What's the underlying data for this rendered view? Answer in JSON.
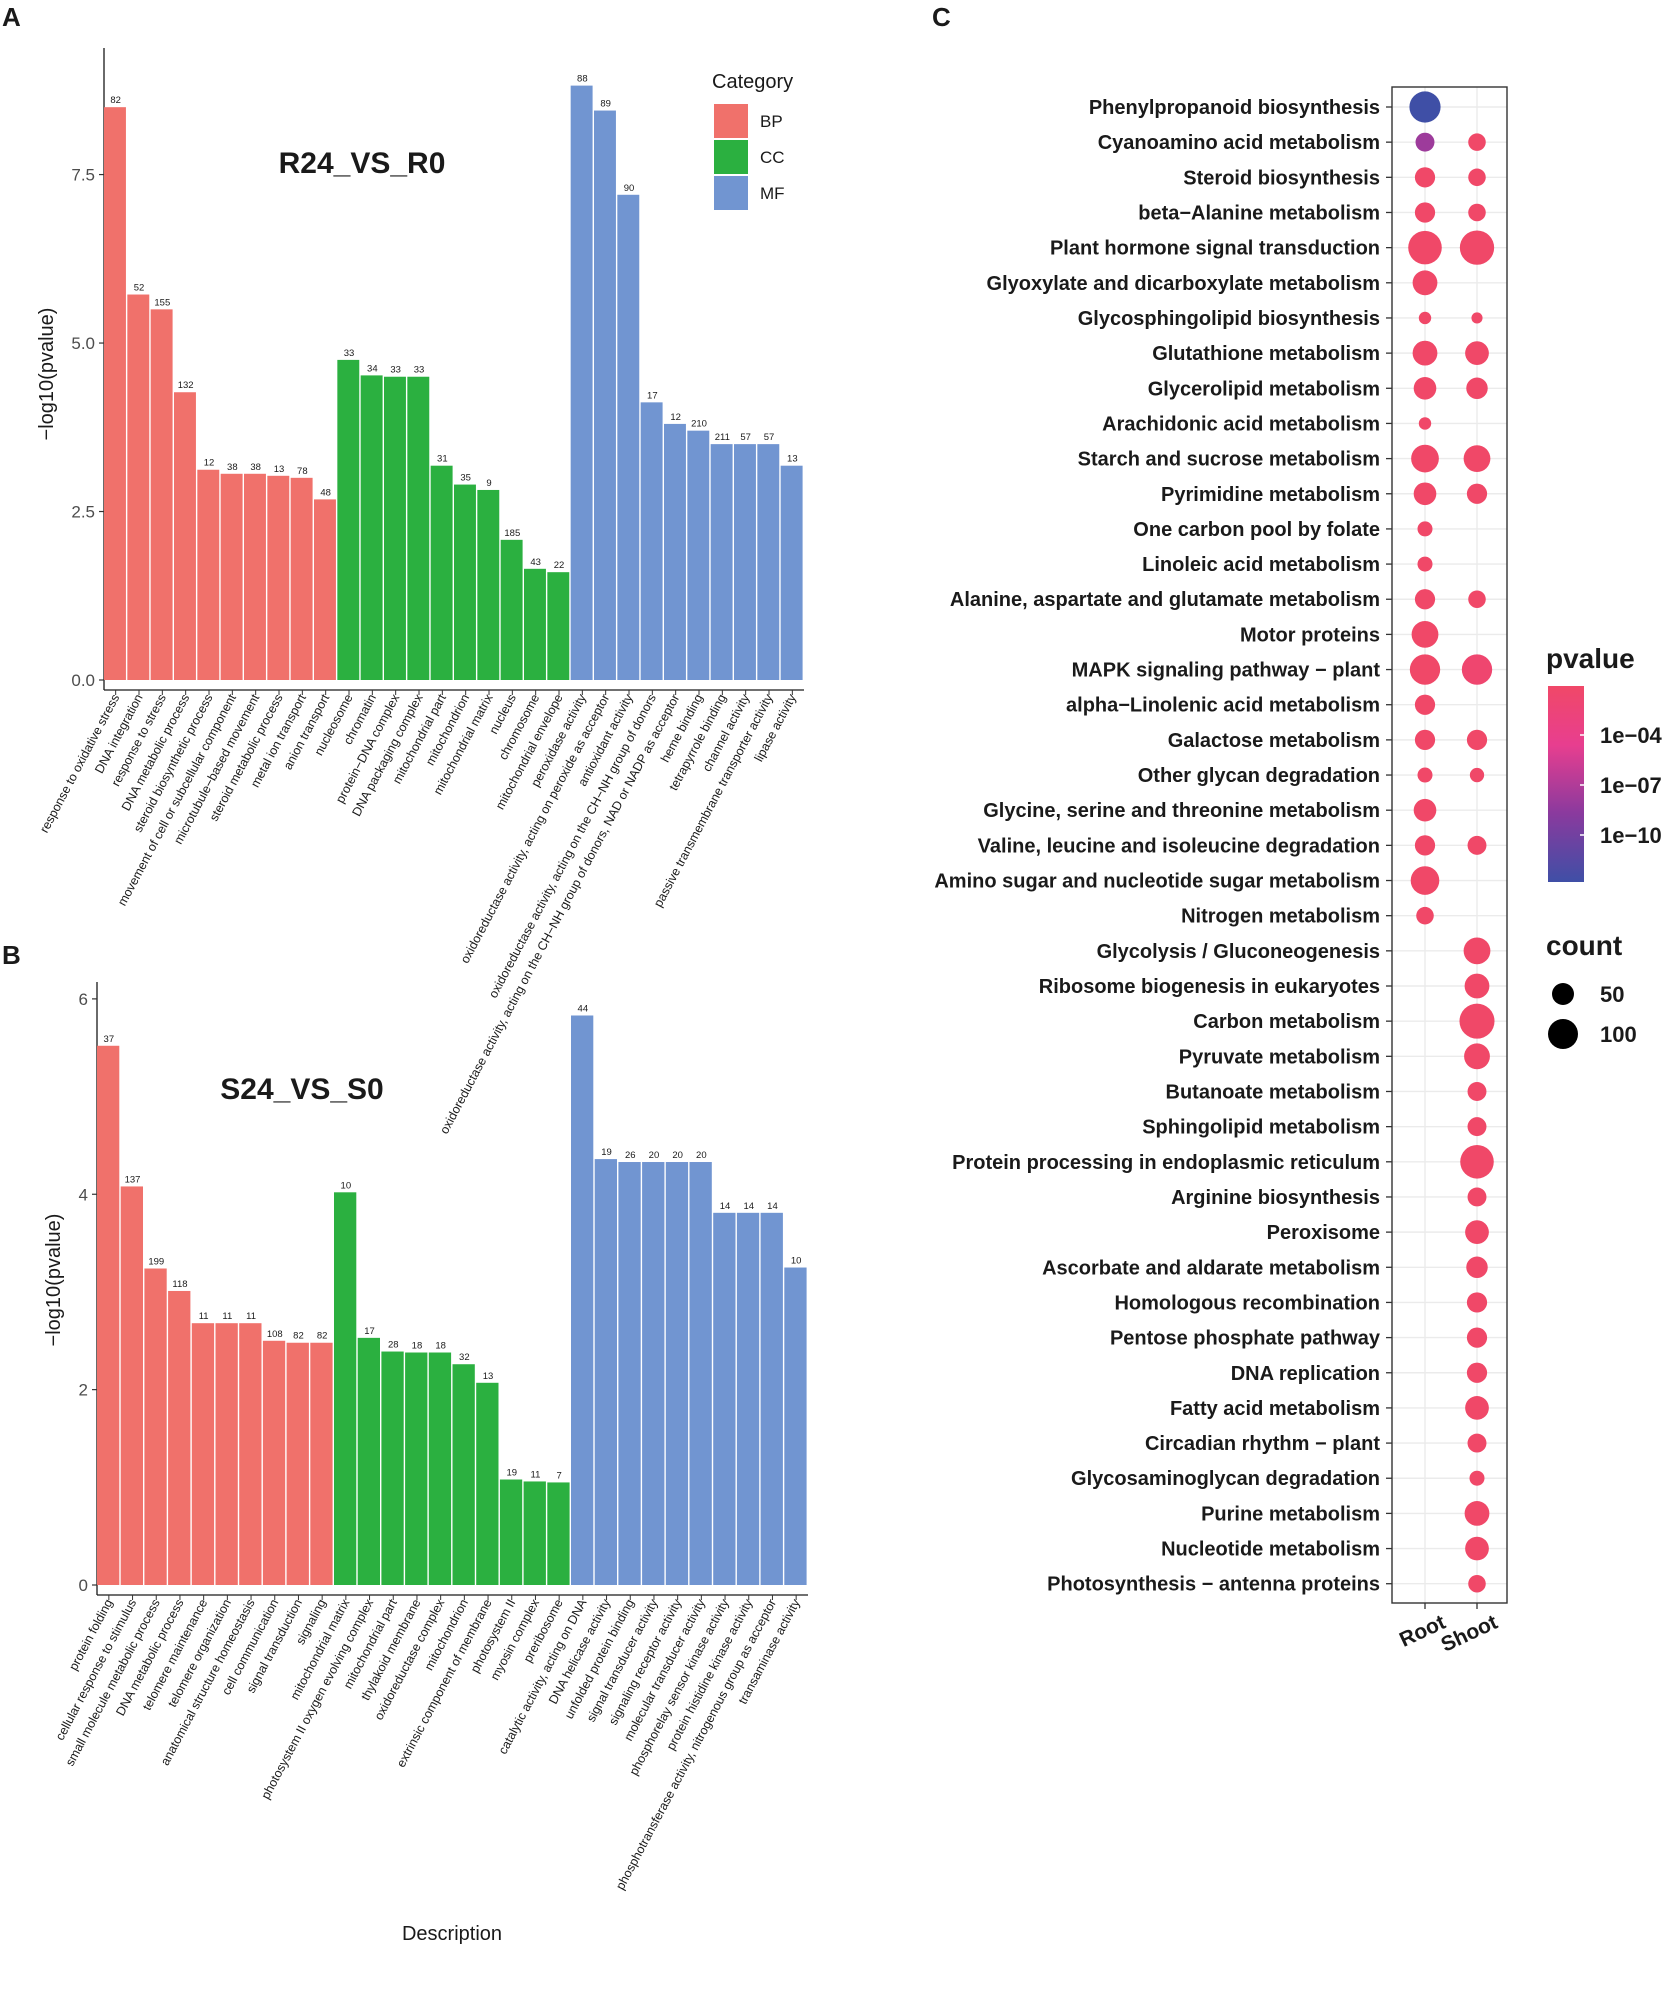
{
  "panel_letters": {
    "a": "A",
    "b": "B",
    "c": "C"
  },
  "colors": {
    "BP": "#F0716B",
    "CC": "#2BB040",
    "MF": "#7195D1",
    "dot_high": "#F04868",
    "dot_low": "#3F4FA6",
    "grid": "#ebebeb"
  },
  "chart_data": [
    {
      "id": "A",
      "type": "bar",
      "title": "R24_VS_R0",
      "xlabel": "",
      "ylabel": "−log10(pvalue)",
      "ylim": [
        0,
        9.2
      ],
      "yticks": [
        0.0,
        2.5,
        5.0,
        7.5
      ],
      "ytick_labels": [
        "0.0",
        "2.5",
        "5.0",
        "7.5"
      ],
      "legend": {
        "title": "Category",
        "items": [
          "BP",
          "CC",
          "MF"
        ],
        "position": "top-right"
      },
      "bars": [
        {
          "label": "response to oxidative stress",
          "category": "BP",
          "value": 8.5,
          "count": "82"
        },
        {
          "label": "DNA integration",
          "category": "BP",
          "value": 5.72,
          "count": "52"
        },
        {
          "label": "response to stress",
          "category": "BP",
          "value": 5.5,
          "count": "155"
        },
        {
          "label": "DNA metabolic process",
          "category": "BP",
          "value": 4.27,
          "count": "132"
        },
        {
          "label": "steroid biosynthetic process",
          "category": "BP",
          "value": 3.12,
          "count": "12"
        },
        {
          "label": "movement of cell or subcellular component",
          "category": "BP",
          "value": 3.06,
          "count": "38"
        },
        {
          "label": "microtubule−based movement",
          "category": "BP",
          "value": 3.06,
          "count": "38"
        },
        {
          "label": "steroid metabolic process",
          "category": "BP",
          "value": 3.03,
          "count": "13"
        },
        {
          "label": "metal ion transport",
          "category": "BP",
          "value": 3.0,
          "count": "78"
        },
        {
          "label": "anion transport",
          "category": "BP",
          "value": 2.68,
          "count": "48"
        },
        {
          "label": "nucleosome",
          "category": "CC",
          "value": 4.75,
          "count": "33"
        },
        {
          "label": "chromatin",
          "category": "CC",
          "value": 4.52,
          "count": "34"
        },
        {
          "label": "protein−DNA complex",
          "category": "CC",
          "value": 4.5,
          "count": "33"
        },
        {
          "label": "DNA packaging complex",
          "category": "CC",
          "value": 4.5,
          "count": "33"
        },
        {
          "label": "mitochondrial part",
          "category": "CC",
          "value": 3.18,
          "count": "31"
        },
        {
          "label": "mitochondrion",
          "category": "CC",
          "value": 2.9,
          "count": "35"
        },
        {
          "label": "mitochondrial matrix",
          "category": "CC",
          "value": 2.82,
          "count": "9"
        },
        {
          "label": "nucleus",
          "category": "CC",
          "value": 2.08,
          "count": "185"
        },
        {
          "label": "chromosome",
          "category": "CC",
          "value": 1.65,
          "count": "43"
        },
        {
          "label": "mitochondrial envelope",
          "category": "CC",
          "value": 1.6,
          "count": "22"
        },
        {
          "label": "peroxidase activity",
          "category": "MF",
          "value": 8.82,
          "count": "88"
        },
        {
          "label": "oxidoreductase activity, acting on peroxide as acceptor",
          "category": "MF",
          "value": 8.45,
          "count": "89"
        },
        {
          "label": "antioxidant activity",
          "category": "MF",
          "value": 7.2,
          "count": "90"
        },
        {
          "label": "oxidoreductase activity, acting on the CH−NH group of donors",
          "category": "MF",
          "value": 4.12,
          "count": "17"
        },
        {
          "label": "oxidoreductase activity, acting on the CH−NH group of donors, NAD or NADP as acceptor",
          "category": "MF",
          "value": 3.8,
          "count": "12"
        },
        {
          "label": "heme binding",
          "category": "MF",
          "value": 3.7,
          "count": "210"
        },
        {
          "label": "tetrapyrrole binding",
          "category": "MF",
          "value": 3.5,
          "count": "211"
        },
        {
          "label": "channel activity",
          "category": "MF",
          "value": 3.5,
          "count": "57"
        },
        {
          "label": "passive transmembrane transporter activity",
          "category": "MF",
          "value": 3.5,
          "count": "57"
        },
        {
          "label": "lipase activity",
          "category": "MF",
          "value": 3.18,
          "count": "13"
        }
      ]
    },
    {
      "id": "B",
      "type": "bar",
      "title": "S24_VS_S0",
      "xlabel": "Description",
      "ylabel": "−log10(pvalue)",
      "ylim": [
        0,
        6.05
      ],
      "yticks": [
        0,
        2,
        4,
        6
      ],
      "ytick_labels": [
        "0",
        "2",
        "4",
        "6"
      ],
      "bars": [
        {
          "label": "protein folding",
          "category": "BP",
          "value": 5.52,
          "count": "37"
        },
        {
          "label": "cellular response to stimulus",
          "category": "BP",
          "value": 4.08,
          "count": "137"
        },
        {
          "label": "small molecule metabolic process",
          "category": "BP",
          "value": 3.24,
          "count": "199"
        },
        {
          "label": "DNA metabolic process",
          "category": "BP",
          "value": 3.01,
          "count": "118"
        },
        {
          "label": "telomere maintenance",
          "category": "BP",
          "value": 2.68,
          "count": "11"
        },
        {
          "label": "telomere organization",
          "category": "BP",
          "value": 2.68,
          "count": "11"
        },
        {
          "label": "anatomical structure homeostasis",
          "category": "BP",
          "value": 2.68,
          "count": "11"
        },
        {
          "label": "cell communication",
          "category": "BP",
          "value": 2.5,
          "count": "108"
        },
        {
          "label": "signal transduction",
          "category": "BP",
          "value": 2.48,
          "count": "82"
        },
        {
          "label": "signaling",
          "category": "BP",
          "value": 2.48,
          "count": "82"
        },
        {
          "label": "mitochondrial matrix",
          "category": "CC",
          "value": 4.02,
          "count": "10"
        },
        {
          "label": "photosystem II oxygen evolving complex",
          "category": "CC",
          "value": 2.53,
          "count": "17"
        },
        {
          "label": "mitochondrial part",
          "category": "CC",
          "value": 2.39,
          "count": "28"
        },
        {
          "label": "thylakoid membrane",
          "category": "CC",
          "value": 2.38,
          "count": "18"
        },
        {
          "label": "oxidoreductase complex",
          "category": "CC",
          "value": 2.38,
          "count": "18"
        },
        {
          "label": "mitochondrion",
          "category": "CC",
          "value": 2.26,
          "count": "32"
        },
        {
          "label": "extrinsic component of membrane",
          "category": "CC",
          "value": 2.07,
          "count": "13"
        },
        {
          "label": "photosystem II",
          "category": "CC",
          "value": 1.08,
          "count": "19"
        },
        {
          "label": "myosin complex",
          "category": "CC",
          "value": 1.06,
          "count": "11"
        },
        {
          "label": "preribosome",
          "category": "CC",
          "value": 1.05,
          "count": "7"
        },
        {
          "label": "catalytic activity, acting on DNA",
          "category": "MF",
          "value": 5.83,
          "count": "44"
        },
        {
          "label": "DNA helicase activity",
          "category": "MF",
          "value": 4.36,
          "count": "19"
        },
        {
          "label": "unfolded protein binding",
          "category": "MF",
          "value": 4.33,
          "count": "26"
        },
        {
          "label": "signal transducer activity",
          "category": "MF",
          "value": 4.33,
          "count": "20"
        },
        {
          "label": "signaling receptor activity",
          "category": "MF",
          "value": 4.33,
          "count": "20"
        },
        {
          "label": "molecular transducer activity",
          "category": "MF",
          "value": 4.33,
          "count": "20"
        },
        {
          "label": "phosphorelay sensor kinase activity",
          "category": "MF",
          "value": 3.81,
          "count": "14"
        },
        {
          "label": "protein histidine kinase activity",
          "category": "MF",
          "value": 3.81,
          "count": "14"
        },
        {
          "label": "phosphotransferase activity, nitrogenous group as acceptor",
          "category": "MF",
          "value": 3.81,
          "count": "14"
        },
        {
          "label": "transaminase activity",
          "category": "MF",
          "value": 3.25,
          "count": "10"
        }
      ]
    },
    {
      "id": "C",
      "type": "scatter",
      "title": "",
      "xlabel": "",
      "ylabel": "",
      "x": [
        "Root",
        "Shoot"
      ],
      "legend": {
        "color_title": "pvalue",
        "color_labels": [
          "1e−04",
          "1e−07",
          "1e−10"
        ],
        "size_title": "count",
        "size_labels": [
          "50",
          "100"
        ]
      },
      "pathways": [
        {
          "name": "Phenylpropanoid biosynthesis",
          "root": {
            "count": 95,
            "log10p": -12.5
          },
          "shoot": null
        },
        {
          "name": "Cyanoamino acid metabolism",
          "root": {
            "count": 35,
            "log10p": -8.5
          },
          "shoot": {
            "count": 30,
            "log10p": -3
          }
        },
        {
          "name": "Steroid biosynthesis",
          "root": {
            "count": 40,
            "log10p": -3
          },
          "shoot": {
            "count": 30,
            "log10p": -3
          }
        },
        {
          "name": "beta−Alanine metabolism",
          "root": {
            "count": 40,
            "log10p": -3
          },
          "shoot": {
            "count": 30,
            "log10p": -3
          }
        },
        {
          "name": "Plant hormone signal transduction",
          "root": {
            "count": 110,
            "log10p": -3
          },
          "shoot": {
            "count": 115,
            "log10p": -3
          }
        },
        {
          "name": "Glyoxylate and dicarboxylate metabolism",
          "root": {
            "count": 60,
            "log10p": -3
          },
          "shoot": null
        },
        {
          "name": "Glycosphingolipid biosynthesis",
          "root": {
            "count": 15,
            "log10p": -3
          },
          "shoot": {
            "count": 12,
            "log10p": -2.5
          }
        },
        {
          "name": "Glutathione metabolism",
          "root": {
            "count": 60,
            "log10p": -3
          },
          "shoot": {
            "count": 55,
            "log10p": -3
          }
        },
        {
          "name": "Glycerolipid metabolism",
          "root": {
            "count": 50,
            "log10p": -3
          },
          "shoot": {
            "count": 45,
            "log10p": -3
          }
        },
        {
          "name": "Arachidonic acid metabolism",
          "root": {
            "count": 15,
            "log10p": -3
          },
          "shoot": null
        },
        {
          "name": "Starch and sucrose metabolism",
          "root": {
            "count": 75,
            "log10p": -3
          },
          "shoot": {
            "count": 70,
            "log10p": -3
          }
        },
        {
          "name": "Pyrimidine metabolism",
          "root": {
            "count": 50,
            "log10p": -3
          },
          "shoot": {
            "count": 40,
            "log10p": -3
          }
        },
        {
          "name": "One carbon pool by folate",
          "root": {
            "count": 22,
            "log10p": -3
          },
          "shoot": null
        },
        {
          "name": "Linoleic acid metabolism",
          "root": {
            "count": 22,
            "log10p": -3
          },
          "shoot": null
        },
        {
          "name": "Alanine, aspartate and glutamate metabolism",
          "root": {
            "count": 40,
            "log10p": -3
          },
          "shoot": {
            "count": 30,
            "log10p": -3
          }
        },
        {
          "name": "Motor proteins",
          "root": {
            "count": 70,
            "log10p": -3
          },
          "shoot": null
        },
        {
          "name": "MAPK signaling pathway − plant",
          "root": {
            "count": 90,
            "log10p": -3
          },
          "shoot": {
            "count": 90,
            "log10p": -3.5
          }
        },
        {
          "name": "alpha−Linolenic acid metabolism",
          "root": {
            "count": 40,
            "log10p": -3
          },
          "shoot": null
        },
        {
          "name": "Galactose metabolism",
          "root": {
            "count": 40,
            "log10p": -3
          },
          "shoot": {
            "count": 40,
            "log10p": -3
          }
        },
        {
          "name": "Other glycan degradation",
          "root": {
            "count": 22,
            "log10p": -3
          },
          "shoot": {
            "count": 20,
            "log10p": -3
          }
        },
        {
          "name": "Glycine, serine and threonine metabolism",
          "root": {
            "count": 50,
            "log10p": -3
          },
          "shoot": null
        },
        {
          "name": "Valine, leucine and isoleucine degradation",
          "root": {
            "count": 40,
            "log10p": -3
          },
          "shoot": {
            "count": 35,
            "log10p": -3
          }
        },
        {
          "name": "Amino sugar and nucleotide sugar metabolism",
          "root": {
            "count": 80,
            "log10p": -3
          },
          "shoot": null
        },
        {
          "name": "Nitrogen metabolism",
          "root": {
            "count": 30,
            "log10p": -3
          },
          "shoot": null
        },
        {
          "name": "Glycolysis / Gluconeogenesis",
          "root": null,
          "shoot": {
            "count": 70,
            "log10p": -3
          }
        },
        {
          "name": "Ribosome biogenesis in eukaryotes",
          "root": null,
          "shoot": {
            "count": 60,
            "log10p": -3
          }
        },
        {
          "name": "Carbon metabolism",
          "root": null,
          "shoot": {
            "count": 120,
            "log10p": -3
          }
        },
        {
          "name": "Pyruvate metabolism",
          "root": null,
          "shoot": {
            "count": 65,
            "log10p": -3
          }
        },
        {
          "name": "Butanoate metabolism",
          "root": null,
          "shoot": {
            "count": 35,
            "log10p": -3
          }
        },
        {
          "name": "Sphingolipid metabolism",
          "root": null,
          "shoot": {
            "count": 35,
            "log10p": -3
          }
        },
        {
          "name": "Protein processing in endoplasmic reticulum",
          "root": null,
          "shoot": {
            "count": 110,
            "log10p": -3
          }
        },
        {
          "name": "Arginine biosynthesis",
          "root": null,
          "shoot": {
            "count": 35,
            "log10p": -3
          }
        },
        {
          "name": "Peroxisome",
          "root": null,
          "shoot": {
            "count": 55,
            "log10p": -3
          }
        },
        {
          "name": "Ascorbate and aldarate metabolism",
          "root": null,
          "shoot": {
            "count": 45,
            "log10p": -3
          }
        },
        {
          "name": "Homologous recombination",
          "root": null,
          "shoot": {
            "count": 40,
            "log10p": -3
          }
        },
        {
          "name": "Pentose phosphate pathway",
          "root": null,
          "shoot": {
            "count": 40,
            "log10p": -3
          }
        },
        {
          "name": "DNA replication",
          "root": null,
          "shoot": {
            "count": 40,
            "log10p": -3
          }
        },
        {
          "name": "Fatty acid metabolism",
          "root": null,
          "shoot": {
            "count": 55,
            "log10p": -3
          }
        },
        {
          "name": "Circadian rhythm − plant",
          "root": null,
          "shoot": {
            "count": 35,
            "log10p": -3
          }
        },
        {
          "name": "Glycosaminoglycan degradation",
          "root": null,
          "shoot": {
            "count": 22,
            "log10p": -3
          }
        },
        {
          "name": "Purine metabolism",
          "root": null,
          "shoot": {
            "count": 60,
            "log10p": -3
          }
        },
        {
          "name": "Nucleotide metabolism",
          "root": null,
          "shoot": {
            "count": 55,
            "log10p": -3
          }
        },
        {
          "name": "Photosynthesis − antenna proteins",
          "root": null,
          "shoot": {
            "count": 30,
            "log10p": -3
          }
        }
      ]
    }
  ]
}
